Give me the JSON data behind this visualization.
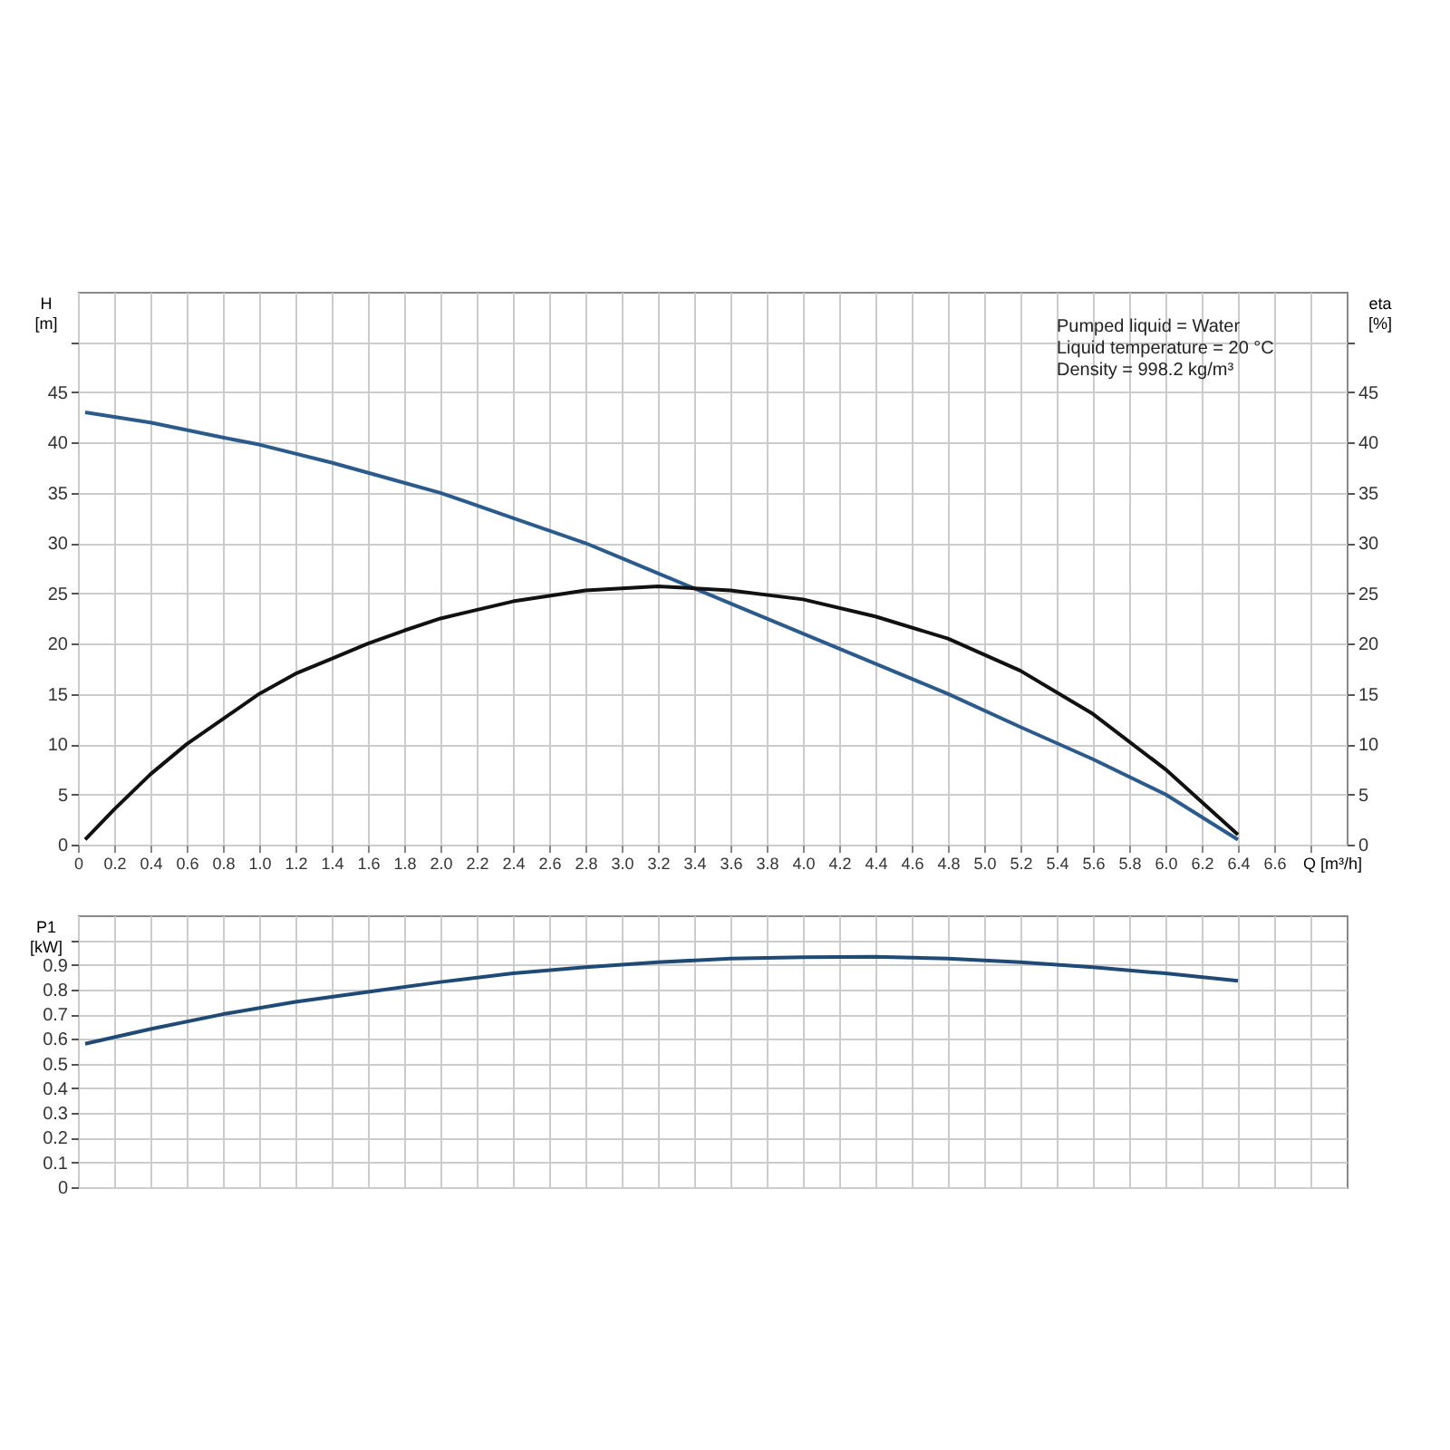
{
  "chart_data": [
    {
      "type": "line",
      "xlabel": "Q [m³/h]",
      "ylabel": "H [m]",
      "y2label": "eta [%]",
      "annotations": [
        "Pumped liquid = Water",
        "Liquid temperature = 20 °C",
        "Density = 998.2 kg/m³"
      ],
      "xlim": [
        0,
        7.0
      ],
      "xticks": [
        0,
        0.2,
        0.4,
        0.6,
        0.8,
        {
          "value": 1,
          "label": "1.0"
        },
        1.2,
        1.4,
        1.6,
        1.8,
        {
          "value": 2,
          "label": "2.0"
        },
        2.2,
        2.4,
        2.6,
        2.8,
        {
          "value": 3,
          "label": "3.0"
        },
        3.2,
        3.4,
        3.6,
        3.8,
        {
          "value": 4,
          "label": "4.0"
        },
        4.2,
        4.4,
        4.6,
        4.8,
        {
          "value": 5,
          "label": "5.0"
        },
        5.2,
        5.4,
        5.6,
        5.8,
        {
          "value": 6,
          "label": "6.0"
        },
        6.2,
        6.4,
        6.6,
        {
          "value": 6.8,
          "label": null
        }
      ],
      "ylim": [
        0,
        55
      ],
      "yticks": [
        0,
        5,
        10,
        15,
        20,
        25,
        30,
        35,
        40,
        45,
        {
          "value": 50,
          "label": null
        }
      ],
      "y2lim": [
        0,
        55
      ],
      "y2ticks": [
        0,
        5,
        10,
        15,
        20,
        25,
        30,
        35,
        40,
        45,
        {
          "value": 50,
          "label": null
        }
      ],
      "grid": true,
      "series": [
        {
          "color": "#2b5b8c",
          "x": [
            0.04,
            0.4,
            0.8,
            1.0,
            1.4,
            1.8,
            2.0,
            2.4,
            2.8,
            3.0,
            3.2,
            3.4,
            3.6,
            4.0,
            4.4,
            4.8,
            5.2,
            5.6,
            6.0,
            6.4
          ],
          "values": [
            43,
            42,
            40.5,
            39.8,
            38,
            36,
            35,
            32.5,
            30,
            28.5,
            27,
            25.5,
            24,
            21,
            18,
            15,
            11.7,
            8.5,
            5,
            0.5
          ]
        },
        {
          "color": "#111111",
          "axis": "y2",
          "x": [
            0.04,
            0.2,
            0.4,
            0.6,
            0.8,
            1.0,
            1.2,
            1.4,
            1.6,
            1.8,
            2.0,
            2.4,
            2.8,
            3.2,
            3.6,
            4.0,
            4.4,
            4.8,
            5.2,
            5.6,
            6.0,
            6.4
          ],
          "values": [
            0.5,
            3.5,
            7,
            10,
            12.5,
            15,
            17,
            18.5,
            20,
            21.3,
            22.5,
            24.2,
            25.3,
            25.7,
            25.3,
            24.4,
            22.7,
            20.5,
            17.3,
            13,
            7.5,
            1
          ]
        }
      ]
    },
    {
      "type": "line",
      "ylabel": "P1 [kW]",
      "tick_labels": "y",
      "xlim": [
        0,
        7.0
      ],
      "xticks": [
        0,
        0.2,
        0.4,
        0.6,
        0.8,
        1.0,
        1.2,
        1.4,
        1.6,
        1.8,
        2.0,
        2.2,
        2.4,
        2.6,
        2.8,
        3.0,
        3.2,
        3.4,
        3.6,
        3.8,
        4.0,
        4.2,
        4.4,
        4.6,
        4.8,
        5.0,
        5.2,
        5.4,
        5.6,
        5.8,
        6.0,
        6.2,
        6.4,
        6.6,
        6.8
      ],
      "ylim": [
        0,
        1.1
      ],
      "yticks": [
        0,
        0.1,
        0.2,
        0.3,
        0.4,
        0.5,
        0.6,
        0.7,
        0.8,
        0.9,
        {
          "value": 1.0,
          "label": null
        }
      ],
      "grid": true,
      "series": [
        {
          "color": "#1f4a75",
          "x": [
            0.04,
            0.4,
            0.8,
            1.2,
            1.6,
            2.0,
            2.4,
            2.8,
            3.2,
            3.6,
            4.0,
            4.4,
            4.8,
            5.2,
            5.6,
            6.0,
            6.4
          ],
          "values": [
            0.58,
            0.64,
            0.7,
            0.75,
            0.79,
            0.83,
            0.865,
            0.89,
            0.91,
            0.925,
            0.93,
            0.932,
            0.925,
            0.91,
            0.89,
            0.865,
            0.835
          ]
        }
      ]
    }
  ]
}
